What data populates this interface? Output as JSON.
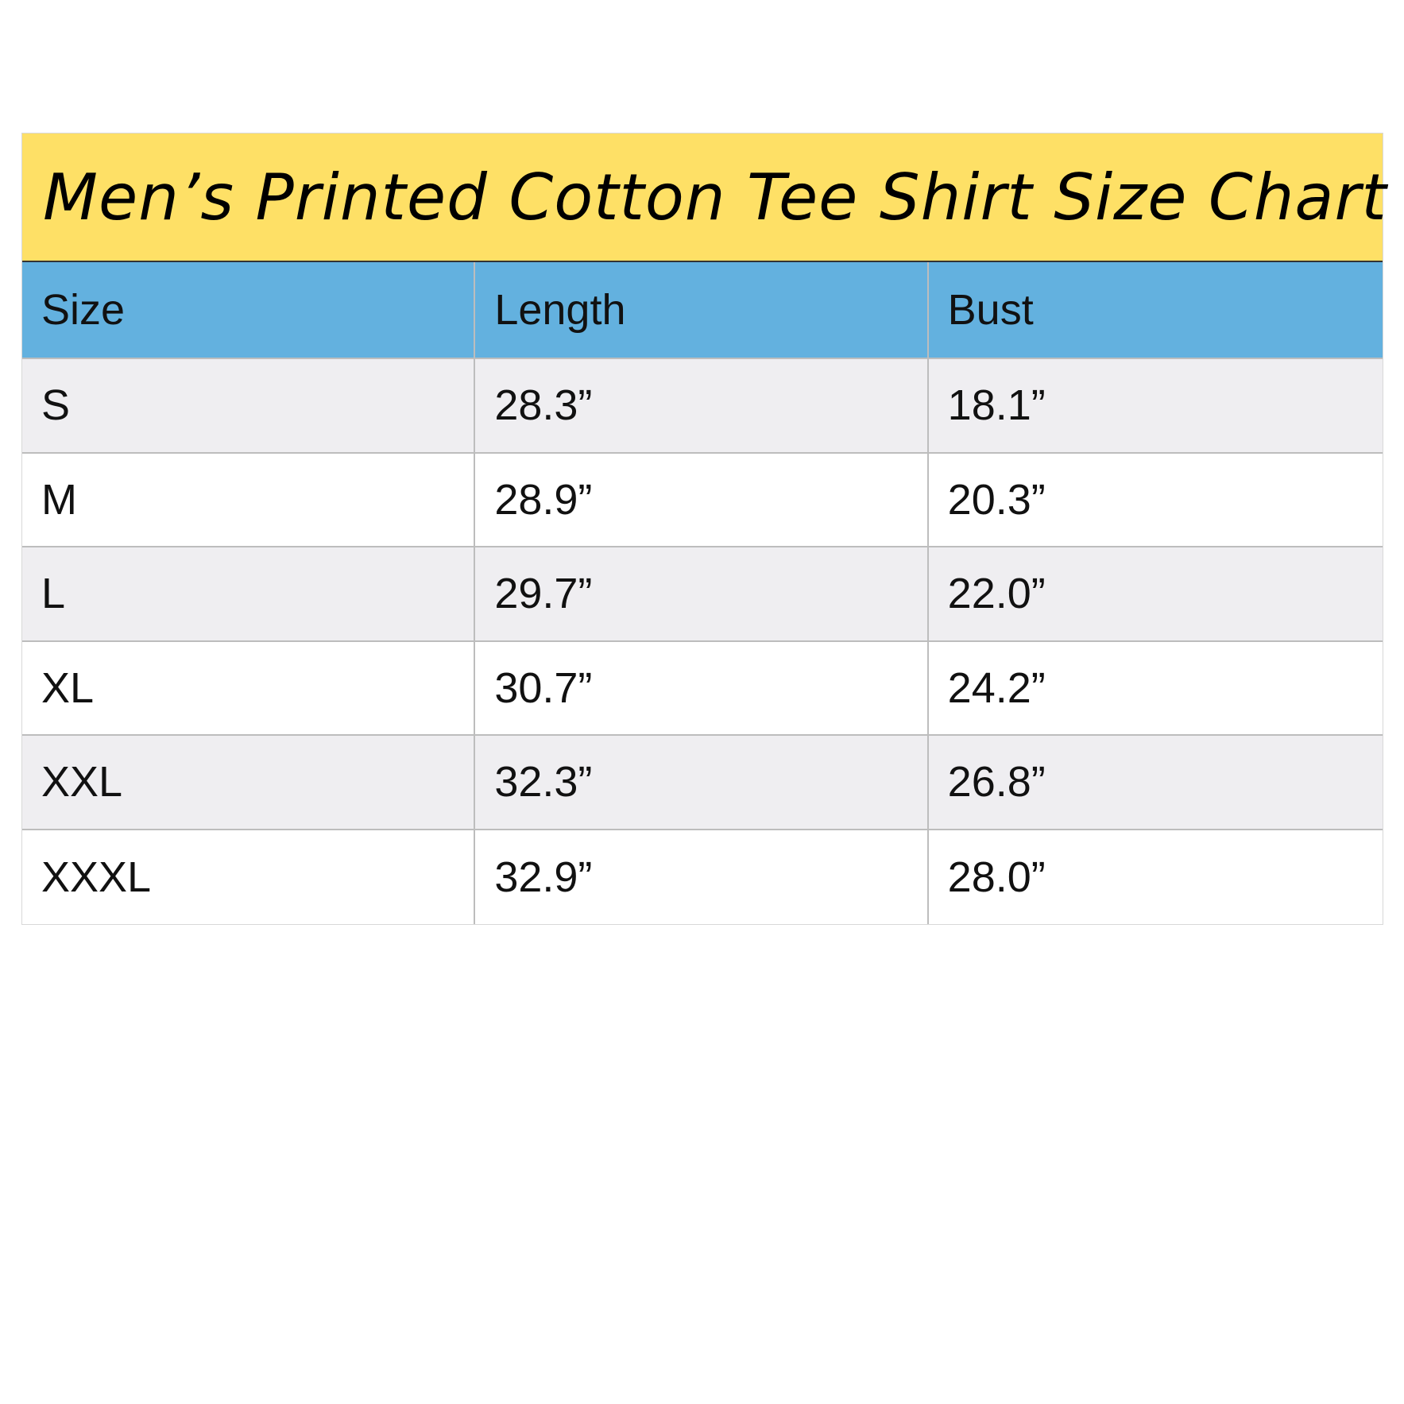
{
  "title": "Men’s Printed Cotton Tee Shirt Size Chart",
  "colors": {
    "title_bg": "#fee066",
    "header_bg": "#63b1df",
    "row_alt_bg": "#efeef1"
  },
  "columns": [
    "Size",
    "Length",
    "Bust"
  ],
  "rows": [
    [
      "S",
      "28.3”",
      "18.1”"
    ],
    [
      "M",
      "28.9”",
      "20.3”"
    ],
    [
      "L",
      "29.7”",
      "22.0”"
    ],
    [
      "XL",
      "30.7”",
      "24.2”"
    ],
    [
      "XXL",
      "32.3”",
      "26.8”"
    ],
    [
      "XXXL",
      "32.9”",
      "28.0”"
    ]
  ]
}
